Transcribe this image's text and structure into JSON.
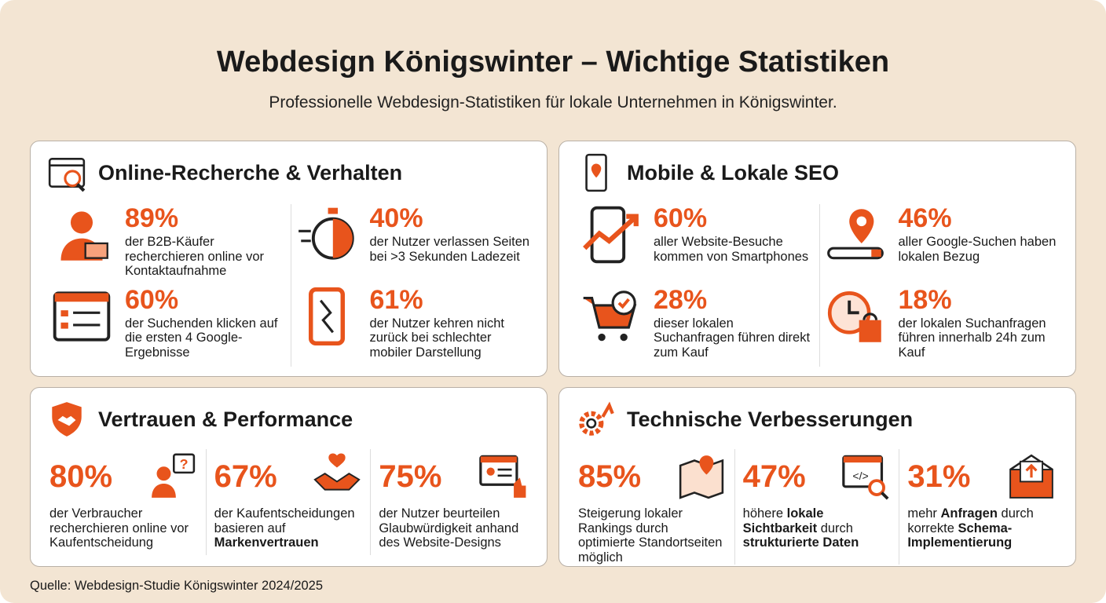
{
  "header": {
    "title": "Webdesign Königswinter – Wichtige Statistiken",
    "subtitle": "Professionelle Webdesign-Statistiken für lokale Unternehmen in Königswinter."
  },
  "sections": [
    {
      "title": "Online-Recherche & Verhalten",
      "stats": [
        {
          "value": "89%",
          "desc": [
            {
              "text": "der B2B-Käufer recherchieren online vor Kontaktaufnahme"
            }
          ]
        },
        {
          "value": "40%",
          "desc": [
            {
              "text": "der Nutzer verlassen Seiten bei >3 Sekunden Ladezeit"
            }
          ]
        },
        {
          "value": "60%",
          "desc": [
            {
              "text": "der Suchenden klicken auf die ersten 4 Google-Ergebnisse"
            }
          ]
        },
        {
          "value": "61%",
          "desc": [
            {
              "text": "der Nutzer kehren nicht zurück bei schlechter mobiler Darstellung"
            }
          ]
        }
      ]
    },
    {
      "title": "Mobile & Lokale SEO",
      "stats": [
        {
          "value": "60%",
          "desc": [
            {
              "text": "aller Website-Besuche kommen von Smartphones"
            }
          ]
        },
        {
          "value": "46%",
          "desc": [
            {
              "text": "aller Google-Suchen haben lokalen Bezug"
            }
          ]
        },
        {
          "value": "28%",
          "desc": [
            {
              "text": "dieser lokalen Suchanfragen führen direkt zum Kauf"
            }
          ]
        },
        {
          "value": "18%",
          "desc": [
            {
              "text": "der lokalen Suchanfragen führen innerhalb 24h zum Kauf"
            }
          ]
        }
      ]
    },
    {
      "title": "Vertrauen & Performance",
      "stats": [
        {
          "value": "80%",
          "desc": [
            {
              "text": "der Verbraucher recherchieren online vor Kaufentscheidung"
            }
          ]
        },
        {
          "value": "67%",
          "desc": [
            {
              "text": "der Kaufentscheidungen basieren auf "
            },
            {
              "text": "Markenvertrauen",
              "bold": true
            }
          ]
        },
        {
          "value": "75%",
          "desc": [
            {
              "text": "der Nutzer beurteilen Glaubwürdigkeit anhand des Website-Designs"
            }
          ]
        }
      ]
    },
    {
      "title": "Technische Verbesserungen",
      "stats": [
        {
          "value": "85%",
          "desc": [
            {
              "text": "Steigerung lokaler Rankings durch optimierte Standortseiten möglich"
            }
          ]
        },
        {
          "value": "47%",
          "desc": [
            {
              "text": "höhere "
            },
            {
              "text": "lokale Sichtbarkeit",
              "bold": true
            },
            {
              "text": " durch "
            },
            {
              "text": "strukturierte Daten",
              "bold": true
            }
          ]
        },
        {
          "value": "31%",
          "desc": [
            {
              "text": "mehr "
            },
            {
              "text": "Anfragen",
              "bold": true
            },
            {
              "text": " durch korrekte "
            },
            {
              "text": "Schema-Implementierung",
              "bold": true
            }
          ]
        }
      ]
    }
  ],
  "footer": {
    "source": "Quelle: Webdesign-Studie Königswinter 2024/2025"
  }
}
